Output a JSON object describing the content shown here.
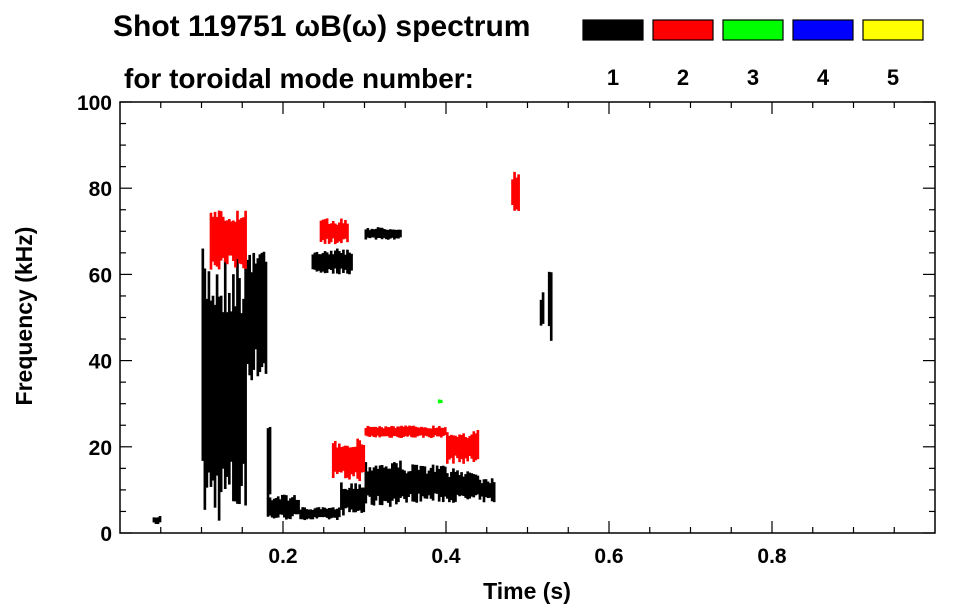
{
  "title": {
    "line1": "Shot 119751 ωB(ω) spectrum",
    "line2": "for toroidal mode number:"
  },
  "colors": {
    "axis": "#000000",
    "background": "#ffffff"
  },
  "chart_data": {
    "type": "heatmap",
    "title": "Shot 119751 ωB(ω) spectrum for toroidal mode number:",
    "xlabel": "Time (s)",
    "ylabel": "Frequency (kHz)",
    "xlim": [
      0.0,
      1.0
    ],
    "ylim": [
      0,
      100
    ],
    "x_ticks": [
      0.2,
      0.4,
      0.6,
      0.8
    ],
    "x_tick_labels": [
      "0.2",
      "0.4",
      "0.6",
      "0.8"
    ],
    "y_ticks": [
      0,
      20,
      40,
      60,
      80,
      100
    ],
    "y_tick_labels": [
      "0",
      "20",
      "40",
      "60",
      "80",
      "100"
    ],
    "legend": {
      "placement": "top-right",
      "entries": [
        {
          "label": "1",
          "color": "#000000"
        },
        {
          "label": "2",
          "color": "#ff0000"
        },
        {
          "label": "3",
          "color": "#00ff00"
        },
        {
          "label": "4",
          "color": "#0000ff"
        },
        {
          "label": "5",
          "color": "#ffff00"
        }
      ]
    },
    "series": [
      {
        "name": "1",
        "color": "#000000",
        "regions": [
          {
            "t": [
              0.1,
              0.155
            ],
            "f": [
              2,
              66
            ]
          },
          {
            "t": [
              0.155,
              0.18
            ],
            "f": [
              35,
              68
            ]
          },
          {
            "t": [
              0.18,
              0.185
            ],
            "f": [
              5,
              30
            ]
          },
          {
            "t": [
              0.18,
              0.22
            ],
            "f": [
              3,
              9
            ]
          },
          {
            "t": [
              0.22,
              0.27
            ],
            "f": [
              3,
              6
            ]
          },
          {
            "t": [
              0.27,
              0.3
            ],
            "f": [
              4,
              12
            ]
          },
          {
            "t": [
              0.3,
              0.35
            ],
            "f": [
              6,
              17
            ]
          },
          {
            "t": [
              0.35,
              0.4
            ],
            "f": [
              7,
              16
            ]
          },
          {
            "t": [
              0.4,
              0.44
            ],
            "f": [
              7,
              15
            ]
          },
          {
            "t": [
              0.44,
              0.46
            ],
            "f": [
              7,
              13
            ]
          },
          {
            "t": [
              0.235,
              0.285
            ],
            "f": [
              60,
              66
            ]
          },
          {
            "t": [
              0.3,
              0.345
            ],
            "f": [
              68,
              71
            ]
          },
          {
            "t": [
              0.04,
              0.05
            ],
            "f": [
              2,
              4
            ]
          },
          {
            "t": [
              0.515,
              0.52
            ],
            "f": [
              48,
              56
            ]
          },
          {
            "t": [
              0.525,
              0.53
            ],
            "f": [
              43,
              66
            ]
          }
        ]
      },
      {
        "name": "2",
        "color": "#ff0000",
        "regions": [
          {
            "t": [
              0.11,
              0.155
            ],
            "f": [
              61,
              75
            ]
          },
          {
            "t": [
              0.245,
              0.28
            ],
            "f": [
              67,
              73
            ]
          },
          {
            "t": [
              0.26,
              0.3
            ],
            "f": [
              12,
              22
            ]
          },
          {
            "t": [
              0.3,
              0.4
            ],
            "f": [
              22,
              25
            ]
          },
          {
            "t": [
              0.4,
              0.44
            ],
            "f": [
              16,
              24
            ]
          },
          {
            "t": [
              0.48,
              0.49
            ],
            "f": [
              74,
              84
            ]
          }
        ]
      },
      {
        "name": "3",
        "color": "#00ff00",
        "regions": [
          {
            "t": [
              0.39,
              0.395
            ],
            "f": [
              30,
              31
            ]
          }
        ]
      },
      {
        "name": "4",
        "color": "#0000ff",
        "regions": []
      },
      {
        "name": "5",
        "color": "#ffff00",
        "regions": []
      }
    ]
  }
}
